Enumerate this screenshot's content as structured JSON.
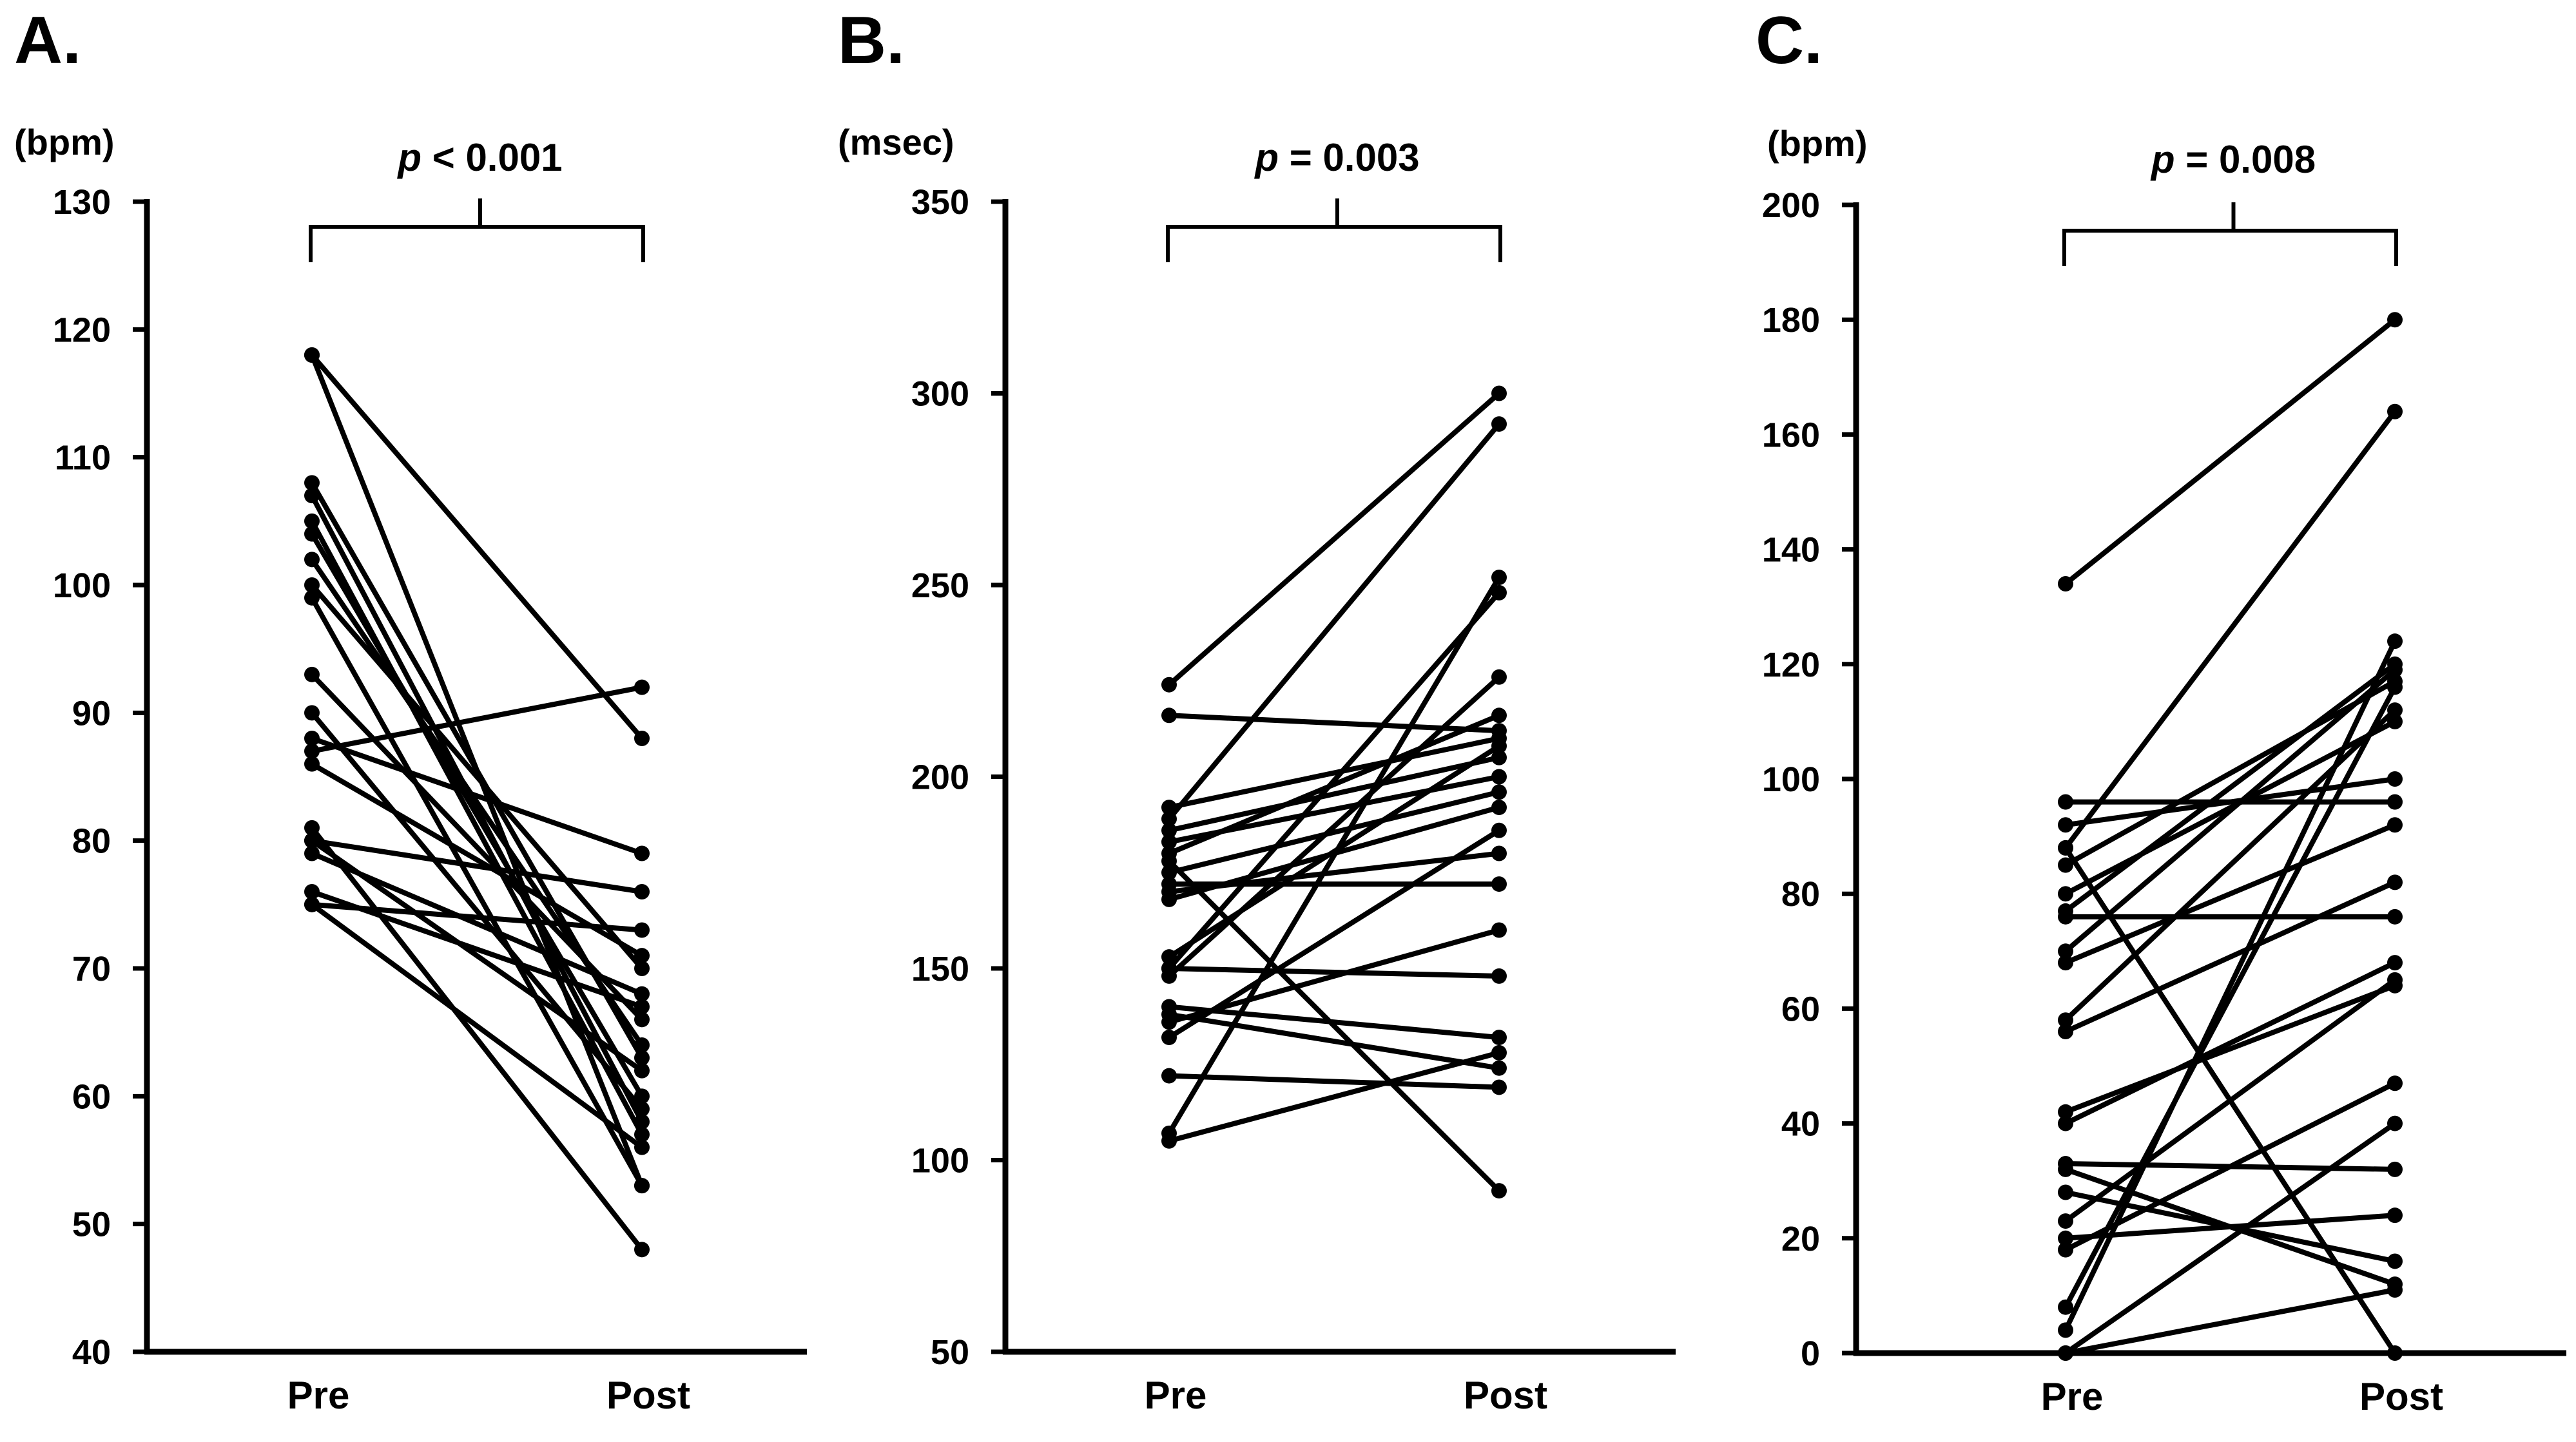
{
  "chart_data": [
    {
      "type": "line",
      "panel": "A.",
      "ylabel": "(bpm)",
      "categories": [
        "Pre",
        "Post"
      ],
      "ylim": [
        40,
        130
      ],
      "yticks": [
        40,
        50,
        60,
        70,
        80,
        90,
        100,
        110,
        120,
        130
      ],
      "p_symbol": "p",
      "p_rest": " < 0.001",
      "series": [
        {
          "values": [
            118,
            88
          ]
        },
        {
          "values": [
            118,
            53
          ]
        },
        {
          "values": [
            108,
            63
          ]
        },
        {
          "values": [
            107,
            58
          ]
        },
        {
          "values": [
            105,
            57
          ]
        },
        {
          "values": [
            104,
            60
          ]
        },
        {
          "values": [
            102,
            64
          ]
        },
        {
          "values": [
            100,
            70
          ]
        },
        {
          "values": [
            99,
            53
          ]
        },
        {
          "values": [
            93,
            66
          ]
        },
        {
          "values": [
            90,
            59
          ]
        },
        {
          "values": [
            88,
            79
          ]
        },
        {
          "values": [
            87,
            92
          ]
        },
        {
          "values": [
            86,
            71
          ]
        },
        {
          "values": [
            81,
            48
          ]
        },
        {
          "values": [
            80,
            62
          ]
        },
        {
          "values": [
            80,
            76
          ]
        },
        {
          "values": [
            79,
            68
          ]
        },
        {
          "values": [
            76,
            67
          ]
        },
        {
          "values": [
            75,
            73
          ]
        },
        {
          "values": [
            75,
            56
          ]
        }
      ]
    },
    {
      "type": "line",
      "panel": "B.",
      "ylabel": "(msec)",
      "categories": [
        "Pre",
        "Post"
      ],
      "ylim": [
        50,
        350
      ],
      "yticks": [
        50,
        100,
        150,
        200,
        250,
        300,
        350
      ],
      "p_symbol": "p",
      "p_rest": " = 0.003",
      "series": [
        {
          "values": [
            224,
            300
          ]
        },
        {
          "values": [
            216,
            212
          ]
        },
        {
          "values": [
            192,
            210
          ]
        },
        {
          "values": [
            189,
            292
          ]
        },
        {
          "values": [
            186,
            205
          ]
        },
        {
          "values": [
            183,
            200
          ]
        },
        {
          "values": [
            180,
            216
          ]
        },
        {
          "values": [
            178,
            92
          ]
        },
        {
          "values": [
            175,
            196
          ]
        },
        {
          "values": [
            172,
            172
          ]
        },
        {
          "values": [
            170,
            180
          ]
        },
        {
          "values": [
            168,
            192
          ]
        },
        {
          "values": [
            153,
            208
          ]
        },
        {
          "values": [
            150,
            248
          ]
        },
        {
          "values": [
            150,
            148
          ]
        },
        {
          "values": [
            148,
            226
          ]
        },
        {
          "values": [
            140,
            132
          ]
        },
        {
          "values": [
            138,
            124
          ]
        },
        {
          "values": [
            136,
            160
          ]
        },
        {
          "values": [
            132,
            186
          ]
        },
        {
          "values": [
            122,
            119
          ]
        },
        {
          "values": [
            107,
            252
          ]
        },
        {
          "values": [
            105,
            128
          ]
        }
      ]
    },
    {
      "type": "line",
      "panel": "C.",
      "ylabel": "(bpm)",
      "categories": [
        "Pre",
        "Post"
      ],
      "ylim": [
        0,
        200
      ],
      "yticks": [
        0,
        20,
        40,
        60,
        80,
        100,
        120,
        140,
        160,
        180,
        200
      ],
      "p_symbol": "p",
      "p_rest": " = 0.008",
      "series": [
        {
          "values": [
            134,
            180
          ]
        },
        {
          "values": [
            96,
            96
          ]
        },
        {
          "values": [
            92,
            100
          ]
        },
        {
          "values": [
            88,
            164
          ]
        },
        {
          "values": [
            88,
            0
          ]
        },
        {
          "values": [
            85,
            117
          ]
        },
        {
          "values": [
            80,
            110
          ]
        },
        {
          "values": [
            77,
            120
          ]
        },
        {
          "values": [
            76,
            76
          ]
        },
        {
          "values": [
            70,
            119
          ]
        },
        {
          "values": [
            68,
            92
          ]
        },
        {
          "values": [
            58,
            112
          ]
        },
        {
          "values": [
            56,
            82
          ]
        },
        {
          "values": [
            42,
            64
          ]
        },
        {
          "values": [
            40,
            68
          ]
        },
        {
          "values": [
            33,
            32
          ]
        },
        {
          "values": [
            32,
            12
          ]
        },
        {
          "values": [
            28,
            16
          ]
        },
        {
          "values": [
            23,
            65
          ]
        },
        {
          "values": [
            20,
            24
          ]
        },
        {
          "values": [
            18,
            47
          ]
        },
        {
          "values": [
            8,
            116
          ]
        },
        {
          "values": [
            4,
            124
          ]
        },
        {
          "values": [
            0,
            11
          ]
        },
        {
          "values": [
            0,
            40
          ]
        }
      ]
    }
  ]
}
